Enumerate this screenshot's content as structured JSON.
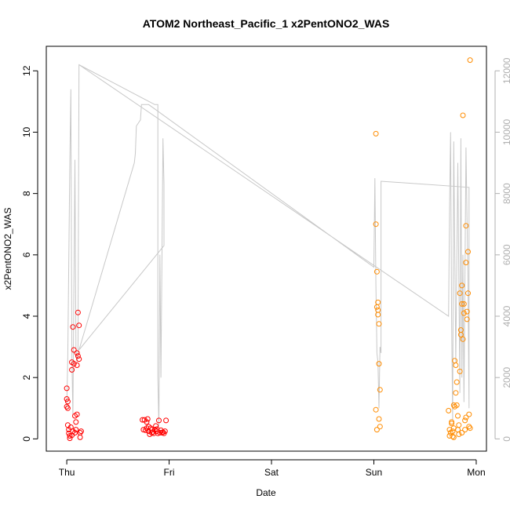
{
  "chart_data": {
    "type": "scatter",
    "title": "ATOM2 Northeast_Pacific_1 x2PentONO2_WAS",
    "xlabel": "Date",
    "ylabel": "x2PentONO2_WAS",
    "x_tick_labels": [
      "Thu",
      "Fri",
      "Sat",
      "Sun",
      "Mon"
    ],
    "x_axis_unit": "days",
    "xlim": [
      -0.2,
      4.1
    ],
    "ylim": [
      -0.4,
      12.8
    ],
    "y_ticks": [
      0,
      2,
      4,
      6,
      8,
      10,
      12
    ],
    "y2_ticks": [
      0,
      2000,
      4000,
      6000,
      8000,
      10000,
      12000
    ],
    "y2lim": [
      -400,
      12800
    ],
    "grid": false,
    "legend": "none",
    "colors": {
      "series_thu_fri": "#ff0000",
      "series_sun_mon": "#ff8c00",
      "altitude_trace": "#c8c8c8",
      "right_axis": "#b0b0b0"
    },
    "series": [
      {
        "color": "#ff0000",
        "points": [
          [
            0.0,
            1.65
          ],
          [
            0.0,
            1.3
          ],
          [
            0.01,
            1.22
          ],
          [
            0.0,
            1.05
          ],
          [
            0.01,
            1.0
          ],
          [
            0.01,
            0.45
          ],
          [
            0.02,
            0.3
          ],
          [
            0.02,
            0.18
          ],
          [
            0.03,
            0.1
          ],
          [
            0.04,
            0.38
          ],
          [
            0.05,
            2.25
          ],
          [
            0.05,
            2.5
          ],
          [
            0.06,
            0.25
          ],
          [
            0.06,
            3.65
          ],
          [
            0.07,
            2.9
          ],
          [
            0.07,
            2.45
          ],
          [
            0.08,
            0.2
          ],
          [
            0.08,
            0.75
          ],
          [
            0.09,
            0.3
          ],
          [
            0.09,
            0.55
          ],
          [
            0.1,
            0.8
          ],
          [
            0.1,
            2.4
          ],
          [
            0.1,
            2.8
          ],
          [
            0.11,
            2.7
          ],
          [
            0.11,
            4.12
          ],
          [
            0.12,
            3.7
          ],
          [
            0.12,
            2.6
          ],
          [
            0.13,
            0.2
          ],
          [
            0.13,
            0.05
          ],
          [
            0.14,
            0.25
          ],
          [
            0.03,
            0.02
          ],
          [
            0.05,
            0.12
          ],
          [
            0.74,
            0.62
          ],
          [
            0.75,
            0.3
          ],
          [
            0.76,
            0.62
          ],
          [
            0.77,
            0.28
          ],
          [
            0.78,
            0.55
          ],
          [
            0.79,
            0.65
          ],
          [
            0.8,
            0.4
          ],
          [
            0.8,
            0.25
          ],
          [
            0.81,
            0.15
          ],
          [
            0.82,
            0.35
          ],
          [
            0.83,
            0.3
          ],
          [
            0.84,
            0.22
          ],
          [
            0.85,
            0.18
          ],
          [
            0.86,
            0.3
          ],
          [
            0.87,
            0.42
          ],
          [
            0.88,
            0.25
          ],
          [
            0.89,
            0.18
          ],
          [
            0.9,
            0.6
          ],
          [
            0.91,
            0.2
          ],
          [
            0.92,
            0.28
          ],
          [
            0.93,
            0.2
          ],
          [
            0.94,
            0.22
          ],
          [
            0.95,
            0.18
          ],
          [
            0.96,
            0.25
          ],
          [
            0.97,
            0.6
          ],
          [
            0.78,
            0.35
          ],
          [
            0.83,
            0.2
          ],
          [
            0.88,
            0.32
          ]
        ]
      },
      {
        "color": "#ff8c00",
        "points": [
          [
            3.02,
            9.95
          ],
          [
            3.02,
            7.0
          ],
          [
            3.03,
            5.45
          ],
          [
            3.03,
            4.3
          ],
          [
            3.04,
            4.45
          ],
          [
            3.04,
            4.2
          ],
          [
            3.04,
            4.05
          ],
          [
            3.05,
            3.75
          ],
          [
            3.05,
            2.45
          ],
          [
            3.06,
            1.6
          ],
          [
            3.02,
            0.95
          ],
          [
            3.03,
            0.3
          ],
          [
            3.05,
            0.65
          ],
          [
            3.06,
            0.4
          ],
          [
            3.73,
            0.92
          ],
          [
            3.74,
            0.3
          ],
          [
            3.74,
            0.1
          ],
          [
            3.75,
            0.2
          ],
          [
            3.76,
            0.55
          ],
          [
            3.76,
            0.5
          ],
          [
            3.77,
            0.25
          ],
          [
            3.77,
            0.08
          ],
          [
            3.78,
            0.35
          ],
          [
            3.78,
            1.1
          ],
          [
            3.79,
            1.05
          ],
          [
            3.79,
            2.55
          ],
          [
            3.8,
            2.4
          ],
          [
            3.8,
            1.5
          ],
          [
            3.81,
            1.85
          ],
          [
            3.81,
            1.1
          ],
          [
            3.82,
            0.75
          ],
          [
            3.82,
            0.3
          ],
          [
            3.83,
            0.15
          ],
          [
            3.84,
            4.75
          ],
          [
            3.84,
            2.2
          ],
          [
            3.85,
            3.55
          ],
          [
            3.85,
            3.4
          ],
          [
            3.86,
            5.0
          ],
          [
            3.86,
            4.4
          ],
          [
            3.87,
            10.55
          ],
          [
            3.87,
            3.25
          ],
          [
            3.88,
            4.4
          ],
          [
            3.88,
            4.1
          ],
          [
            3.89,
            0.6
          ],
          [
            3.89,
            0.3
          ],
          [
            3.9,
            5.75
          ],
          [
            3.9,
            6.95
          ],
          [
            3.91,
            3.9
          ],
          [
            3.91,
            4.15
          ],
          [
            3.92,
            6.1
          ],
          [
            3.92,
            4.75
          ],
          [
            3.93,
            0.8
          ],
          [
            3.93,
            0.4
          ],
          [
            3.94,
            12.35
          ],
          [
            3.94,
            0.35
          ],
          [
            3.78,
            0.05
          ],
          [
            3.83,
            0.45
          ],
          [
            3.86,
            0.2
          ],
          [
            3.9,
            0.7
          ]
        ]
      }
    ],
    "altitude_trace": [
      [
        0.0,
        1000
      ],
      [
        0.01,
        2700
      ],
      [
        0.03,
        9000
      ],
      [
        0.04,
        11400
      ],
      [
        0.05,
        2700
      ],
      [
        0.06,
        800
      ],
      [
        0.07,
        5000
      ],
      [
        0.08,
        9100
      ],
      [
        0.09,
        3000
      ],
      [
        0.1,
        2500
      ],
      [
        0.11,
        2800
      ],
      [
        0.12,
        12200
      ],
      [
        0.86,
        10900
      ],
      [
        0.89,
        10900
      ],
      [
        0.89,
        2000
      ],
      [
        0.9,
        400
      ],
      [
        0.91,
        6000
      ],
      [
        0.92,
        2000
      ],
      [
        0.94,
        9800
      ],
      [
        0.95,
        8300
      ],
      [
        0.95,
        6300
      ],
      [
        0.12,
        2900
      ],
      [
        0.66,
        9000
      ],
      [
        0.67,
        9300
      ],
      [
        0.68,
        10200
      ],
      [
        0.72,
        10400
      ],
      [
        0.73,
        10900
      ],
      [
        0.8,
        10900
      ],
      [
        3.0,
        5600
      ],
      [
        3.01,
        8500
      ],
      [
        3.02,
        5000
      ],
      [
        3.03,
        2800
      ],
      [
        3.04,
        2500
      ],
      [
        3.05,
        1000
      ],
      [
        3.06,
        3000
      ],
      [
        3.07,
        2800
      ],
      [
        3.07,
        8400
      ],
      [
        3.93,
        8200
      ],
      [
        3.93,
        1000
      ],
      [
        3.92,
        5000
      ],
      [
        3.9,
        9500
      ],
      [
        3.88,
        1200
      ],
      [
        3.87,
        6000
      ],
      [
        3.86,
        2000
      ],
      [
        3.85,
        9800
      ],
      [
        3.84,
        1500
      ],
      [
        3.82,
        9000
      ],
      [
        3.8,
        2500
      ],
      [
        3.78,
        9700
      ],
      [
        3.77,
        600
      ],
      [
        3.76,
        3900
      ],
      [
        3.75,
        10000
      ],
      [
        3.74,
        7600
      ],
      [
        3.73,
        4000
      ],
      [
        0.12,
        12200
      ]
    ]
  }
}
